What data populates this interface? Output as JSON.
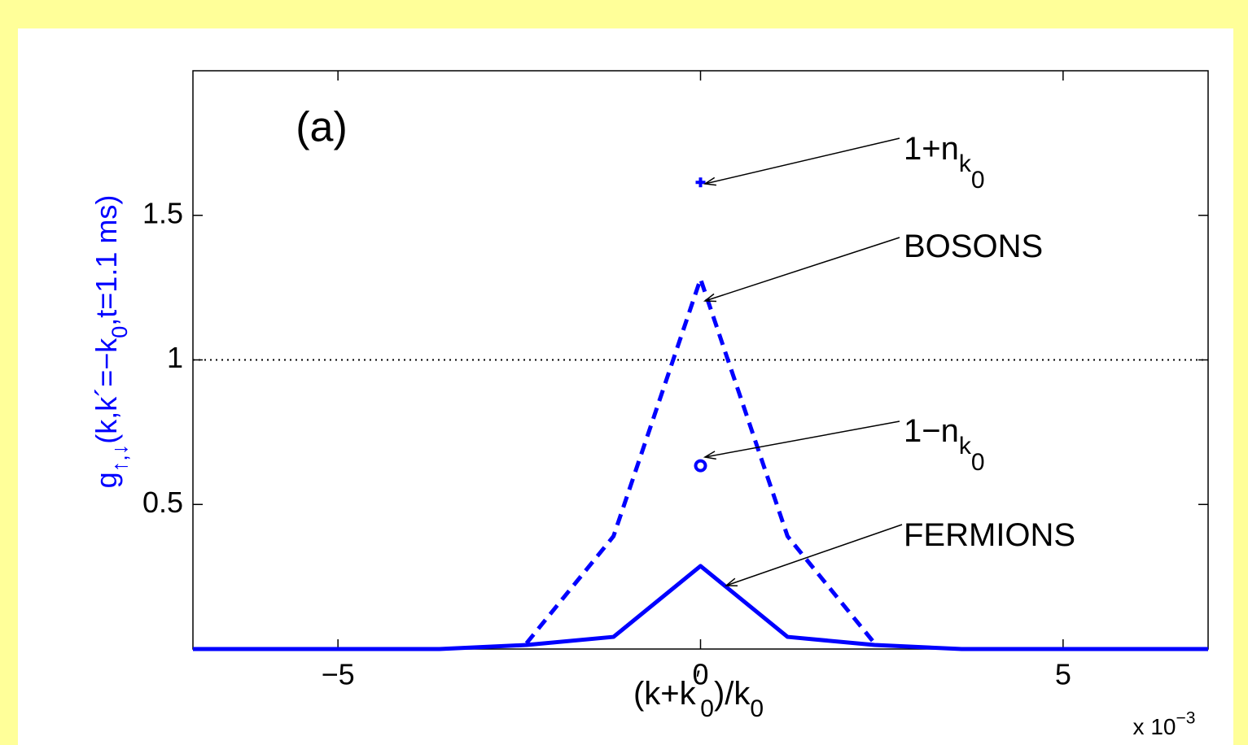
{
  "chart_data": {
    "type": "line",
    "panel_label": "(a)",
    "xlabel": [
      {
        "text": "(k+k"
      },
      {
        "text": "′",
        "script": "sup"
      },
      {
        "text": "0",
        "script": "sub"
      },
      {
        "text": ")/k"
      },
      {
        "text": "0",
        "script": "sub"
      }
    ],
    "ylabel": [
      {
        "text": "g"
      },
      {
        "text": "↑,↓",
        "script": "sub"
      },
      {
        "text": "(k,k´=−k"
      },
      {
        "text": "0",
        "script": "sub"
      },
      {
        "text": ",t=1.1 ms)"
      }
    ],
    "ylabel_color": "#0000ff",
    "x_multiplier": [
      {
        "text": "x 10"
      },
      {
        "text": "−3",
        "script": "sup"
      }
    ],
    "xlim": [
      -7,
      7
    ],
    "ylim": [
      0,
      2
    ],
    "xticks": [
      {
        "value": -5,
        "label": "−5"
      },
      0,
      5
    ],
    "yticks": [
      0.5,
      1,
      1.5
    ],
    "hlines": [
      1
    ],
    "series": [
      {
        "label": [
          {
            "text": "FERMIONS"
          }
        ],
        "color": "#0000ff",
        "style": "solid",
        "x": [
          -7,
          -3.6,
          -2.4,
          -1.2,
          0,
          1.2,
          2.4,
          3.6,
          7
        ],
        "values": [
          0,
          0,
          0.014,
          0.042,
          0.287,
          0.042,
          0.014,
          0,
          0
        ]
      },
      {
        "label": [
          {
            "text": "BOSONS"
          }
        ],
        "color": "#0000ff",
        "style": "dashed",
        "x": [
          -2.4,
          -1.2,
          0,
          1.2,
          2.4
        ],
        "values": [
          0.02,
          0.39,
          1.28,
          0.39,
          0.02
        ]
      },
      {
        "label": [
          {
            "text": "1+n"
          },
          {
            "text": "k",
            "script": "sub"
          },
          {
            "text": "0",
            "script": "sub2"
          }
        ],
        "color": "#0000ff",
        "marker": "plus",
        "x": [
          0
        ],
        "values": [
          1.614
        ]
      },
      {
        "label": [
          {
            "text": "1−n"
          },
          {
            "text": "k",
            "script": "sub"
          },
          {
            "text": "0",
            "script": "sub2"
          }
        ],
        "color": "#0000ff",
        "marker": "circle",
        "x": [
          0
        ],
        "values": [
          0.634
        ]
      }
    ]
  }
}
